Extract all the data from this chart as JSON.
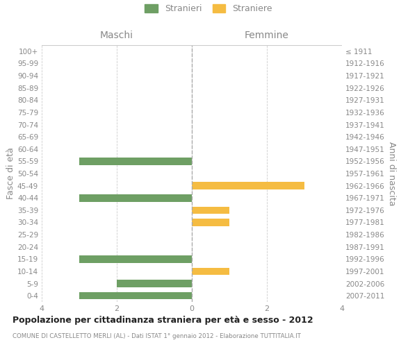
{
  "age_groups": [
    "0-4",
    "5-9",
    "10-14",
    "15-19",
    "20-24",
    "25-29",
    "30-34",
    "35-39",
    "40-44",
    "45-49",
    "50-54",
    "55-59",
    "60-64",
    "65-69",
    "70-74",
    "75-79",
    "80-84",
    "85-89",
    "90-94",
    "95-99",
    "100+"
  ],
  "birth_years": [
    "2007-2011",
    "2002-2006",
    "1997-2001",
    "1992-1996",
    "1987-1991",
    "1982-1986",
    "1977-1981",
    "1972-1976",
    "1967-1971",
    "1962-1966",
    "1957-1961",
    "1952-1956",
    "1947-1951",
    "1942-1946",
    "1937-1941",
    "1932-1936",
    "1927-1931",
    "1922-1926",
    "1917-1921",
    "1912-1916",
    "≤ 1911"
  ],
  "maschi": [
    3,
    2,
    0,
    3,
    0,
    0,
    0,
    0,
    3,
    0,
    0,
    3,
    0,
    0,
    0,
    0,
    0,
    0,
    0,
    0,
    0
  ],
  "femmine": [
    0,
    0,
    1,
    0,
    0,
    0,
    1,
    1,
    0,
    3,
    0,
    0,
    0,
    0,
    0,
    0,
    0,
    0,
    0,
    0,
    0
  ],
  "maschi_color": "#6e9f64",
  "femmine_color": "#f5bc42",
  "bar_height": 0.6,
  "xlim": 4,
  "title": "Popolazione per cittadinanza straniera per età e sesso - 2012",
  "subtitle": "COMUNE DI CASTELLETTO MERLI (AL) - Dati ISTAT 1° gennaio 2012 - Elaborazione TUTTITALIA.IT",
  "ylabel_left": "Fasce di età",
  "ylabel_right": "Anni di nascita",
  "header_maschi": "Maschi",
  "header_femmine": "Femmine",
  "legend_stranieri": "Stranieri",
  "legend_straniere": "Straniere",
  "bg_color": "#ffffff",
  "grid_color": "#cccccc",
  "center_line_color": "#aaaaaa",
  "tick_label_color": "#888888",
  "title_color": "#222222",
  "subtitle_color": "#888888"
}
